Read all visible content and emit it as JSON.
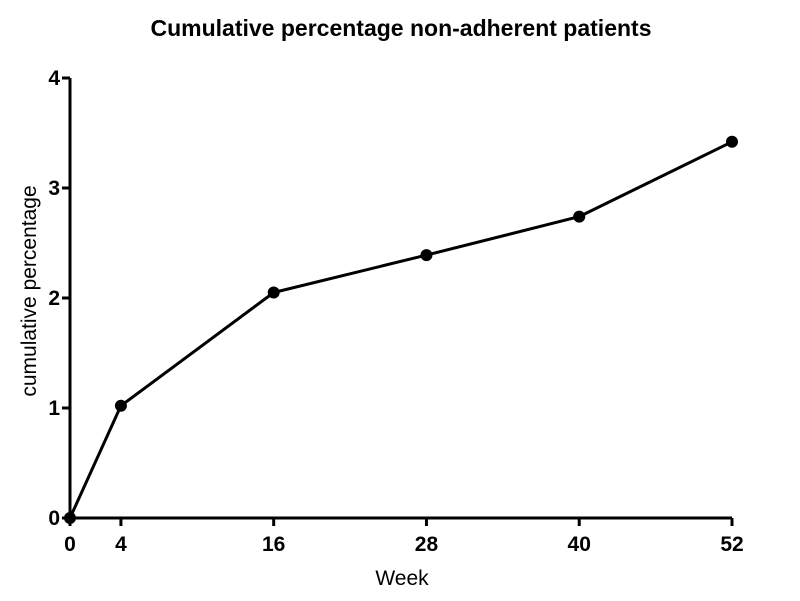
{
  "chart_data": {
    "type": "line",
    "title": "Cumulative percentage non-adherent patients",
    "xlabel": "Week",
    "ylabel": "cumulative percentage",
    "x": [
      0,
      4,
      16,
      28,
      40,
      52
    ],
    "series": [
      {
        "values": [
          0,
          1.02,
          2.05,
          2.39,
          2.74,
          3.42
        ]
      }
    ],
    "xticks": [
      0,
      4,
      16,
      28,
      40,
      52
    ],
    "xtick_labels": [
      "0",
      "4",
      "16",
      "28",
      "40",
      "52"
    ],
    "yticks": [
      0,
      1,
      2,
      3,
      4
    ],
    "ytick_labels": [
      "0",
      "1",
      "2",
      "3",
      "4"
    ],
    "xlim": [
      0,
      52
    ],
    "ylim": [
      0,
      4
    ],
    "grid": false,
    "colors": {
      "line": "#000000",
      "marker": "#000000"
    }
  }
}
